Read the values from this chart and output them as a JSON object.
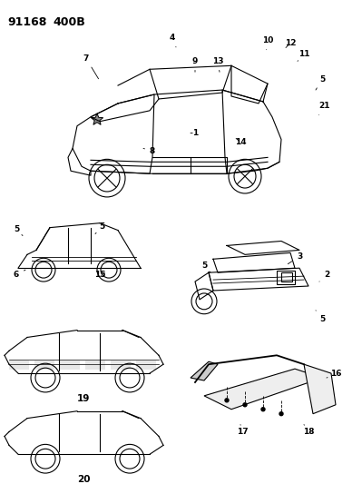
{
  "title": "91168 400B",
  "background_color": "#ffffff",
  "line_color": "#000000",
  "text_color": "#000000",
  "fig_width": 3.99,
  "fig_height": 5.33,
  "dpi": 100
}
